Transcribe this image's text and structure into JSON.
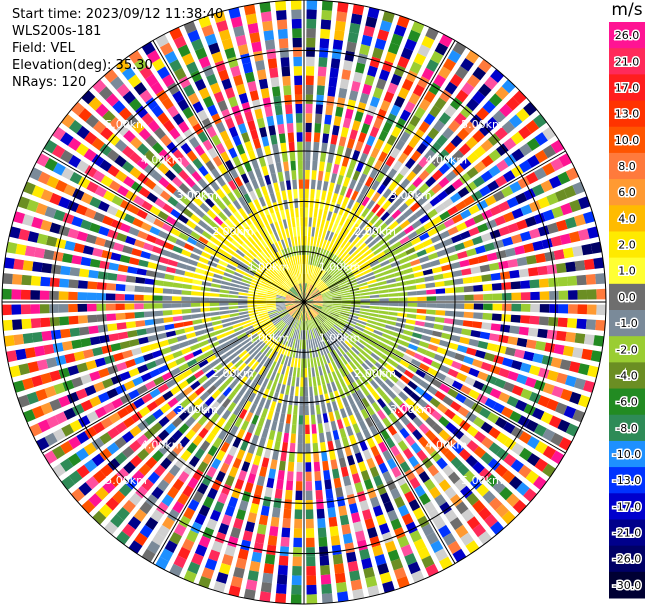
{
  "chart_data": {
    "type": "ppi",
    "info": {
      "start_time": "Start time: 2023/09/12 11:38:40",
      "instrument": "WLS200s-181",
      "field": "Field: VEL",
      "elevation": "Elevation(deg): 35.30",
      "nrays": "NRays: 120"
    },
    "n_rays": 120,
    "range_rings_km": [
      1.0,
      2.0,
      3.0,
      4.0,
      5.0,
      6.0
    ],
    "range_label_suffix": "km",
    "max_range_km": 6.0,
    "azimuth_spokes_deg": [
      0,
      30,
      60,
      90,
      120,
      150,
      180,
      210,
      240,
      270,
      300,
      330
    ],
    "colorbar": {
      "unit": "m/s",
      "ticks": [
        "26.0",
        "21.0",
        "17.0",
        "13.0",
        "10.0",
        "8.0",
        "6.0",
        "4.0",
        "2.0",
        "1.0",
        "0.0",
        "-1.0",
        "-2.0",
        "-4.0",
        "-6.0",
        "-8.0",
        "-10.0",
        "-13.0",
        "-17.0",
        "-21.0",
        "-26.0",
        "-30.0"
      ],
      "colors": [
        "#ff1493",
        "#ff2a5a",
        "#ff1e1e",
        "#ff3300",
        "#ff5500",
        "#ff7a3c",
        "#ff9a32",
        "#ffbb00",
        "#ffea00",
        "#ffff33",
        "#6e6e6e",
        "#7a8a99",
        "#9acd32",
        "#6b8e23",
        "#228b22",
        "#2e8b57",
        "#1e90ff",
        "#0033ff",
        "#0000cd",
        "#00008b",
        "#000066",
        "#000033"
      ]
    }
  }
}
